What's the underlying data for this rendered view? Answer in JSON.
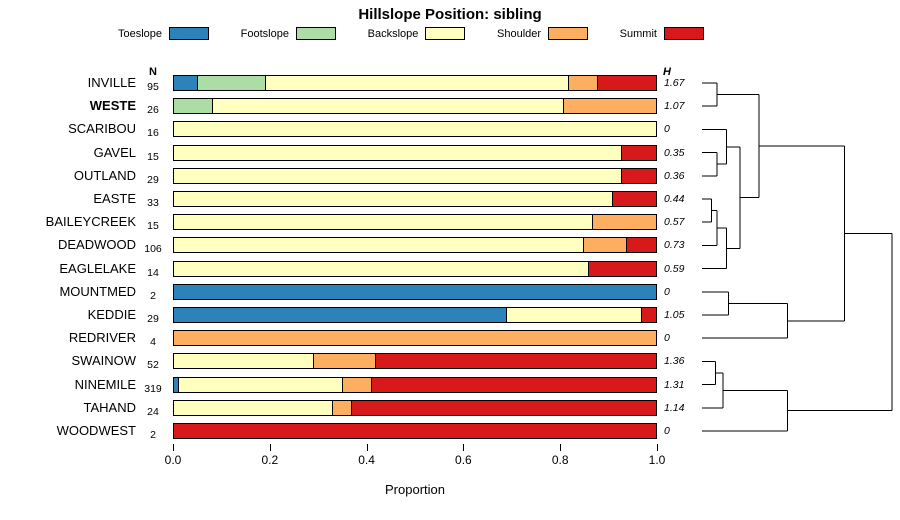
{
  "chart_data": {
    "type": "bar",
    "stacked": true,
    "orientation": "horizontal",
    "title": "Hillslope Position: sibling",
    "xlabel": "Proportion",
    "xlim": [
      0,
      1
    ],
    "x_tick_labels": [
      "0.0",
      "0.2",
      "0.4",
      "0.6",
      "0.8",
      "1.0"
    ],
    "grid": false,
    "legend_position": "top",
    "columns": {
      "n_header": "N",
      "h_header": "H"
    },
    "series": [
      {
        "name": "Toeslope",
        "color": "#2B83BA"
      },
      {
        "name": "Footslope",
        "color": "#ABDDA4"
      },
      {
        "name": "Backslope",
        "color": "#FFFFBF"
      },
      {
        "name": "Shoulder",
        "color": "#FDAE61"
      },
      {
        "name": "Summit",
        "color": "#D7191C"
      }
    ],
    "rows": [
      {
        "name": "INVILLE",
        "n": 95,
        "h": "1.67",
        "bold": false,
        "values": [
          0.05,
          0.14,
          0.63,
          0.06,
          0.12
        ]
      },
      {
        "name": "WESTE",
        "n": 26,
        "h": "1.07",
        "bold": true,
        "values": [
          0,
          0.08,
          0.73,
          0.19,
          0
        ]
      },
      {
        "name": "SCARIBOU",
        "n": 16,
        "h": "0",
        "bold": false,
        "values": [
          0,
          0,
          1,
          0,
          0
        ]
      },
      {
        "name": "GAVEL",
        "n": 15,
        "h": "0.35",
        "bold": false,
        "values": [
          0,
          0,
          0.93,
          0,
          0.07
        ]
      },
      {
        "name": "OUTLAND",
        "n": 29,
        "h": "0.36",
        "bold": false,
        "values": [
          0,
          0,
          0.93,
          0,
          0.07
        ]
      },
      {
        "name": "EASTE",
        "n": 33,
        "h": "0.44",
        "bold": false,
        "values": [
          0,
          0,
          0.91,
          0,
          0.09
        ]
      },
      {
        "name": "BAILEYCREEK",
        "n": 15,
        "h": "0.57",
        "bold": false,
        "values": [
          0,
          0,
          0.87,
          0.13,
          0
        ]
      },
      {
        "name": "DEADWOOD",
        "n": 106,
        "h": "0.73",
        "bold": false,
        "values": [
          0,
          0,
          0.85,
          0.09,
          0.06
        ]
      },
      {
        "name": "EAGLELAKE",
        "n": 14,
        "h": "0.59",
        "bold": false,
        "values": [
          0,
          0,
          0.86,
          0,
          0.14
        ]
      },
      {
        "name": "MOUNTMED",
        "n": 2,
        "h": "0",
        "bold": false,
        "values": [
          1,
          0,
          0,
          0,
          0
        ]
      },
      {
        "name": "KEDDIE",
        "n": 29,
        "h": "1.05",
        "bold": false,
        "values": [
          0.69,
          0,
          0.28,
          0,
          0.03
        ]
      },
      {
        "name": "REDRIVER",
        "n": 4,
        "h": "0",
        "bold": false,
        "values": [
          0,
          0,
          0,
          1,
          0
        ]
      },
      {
        "name": "SWAINOW",
        "n": 52,
        "h": "1.36",
        "bold": false,
        "values": [
          0,
          0,
          0.29,
          0.13,
          0.58
        ]
      },
      {
        "name": "NINEMILE",
        "n": 319,
        "h": "1.31",
        "bold": false,
        "values": [
          0.01,
          0,
          0.34,
          0.06,
          0.59
        ]
      },
      {
        "name": "TAHAND",
        "n": 24,
        "h": "1.14",
        "bold": false,
        "values": [
          0,
          0,
          0.33,
          0.04,
          0.63
        ]
      },
      {
        "name": "WOODWEST",
        "n": 2,
        "h": "0",
        "bold": false,
        "values": [
          0,
          0,
          0,
          0,
          1
        ]
      }
    ],
    "dendrogram": {
      "note": "merges reference leaf indices 0-15 (rows top to bottom), then merged clusters 16,17,... in order; third value is relative merge height 0-1",
      "merges": [
        [
          0,
          1,
          0.08
        ],
        [
          3,
          4,
          0.08
        ],
        [
          2,
          17,
          0.13
        ],
        [
          5,
          6,
          0.05
        ],
        [
          19,
          7,
          0.08
        ],
        [
          20,
          8,
          0.13
        ],
        [
          18,
          21,
          0.2
        ],
        [
          16,
          22,
          0.3
        ],
        [
          9,
          10,
          0.14
        ],
        [
          24,
          11,
          0.45
        ],
        [
          23,
          25,
          0.75
        ],
        [
          12,
          13,
          0.07
        ],
        [
          27,
          14,
          0.11
        ],
        [
          28,
          15,
          0.45
        ],
        [
          26,
          29,
          1.0
        ]
      ]
    }
  }
}
